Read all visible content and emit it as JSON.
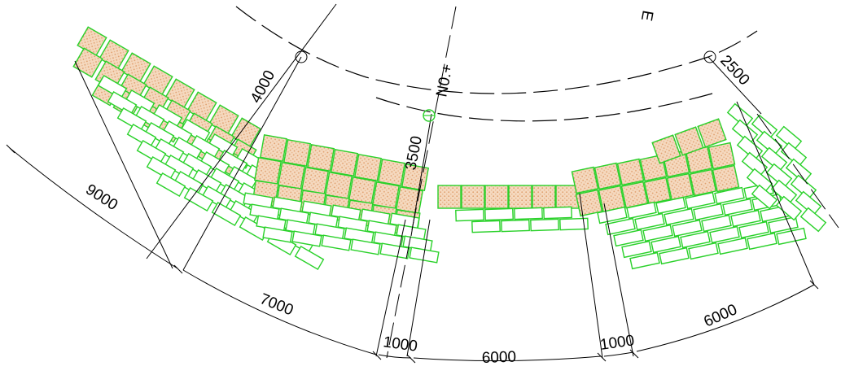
{
  "colors": {
    "tile_outline": "#2ad12a",
    "hatch_fill": "#f5d9bf",
    "hatch_dot": "#e0a06e",
    "line": "#000000"
  },
  "labels": {
    "station": "N0.+",
    "r4000": "4000",
    "r3500": "3500",
    "r2500": "2500",
    "arc9000": "9000",
    "arc7000": "7000",
    "arc1000a": "1000",
    "arc6000a": "6000",
    "arc1000b": "1000",
    "arc6000b": "6000",
    "edge_mark": "E"
  }
}
